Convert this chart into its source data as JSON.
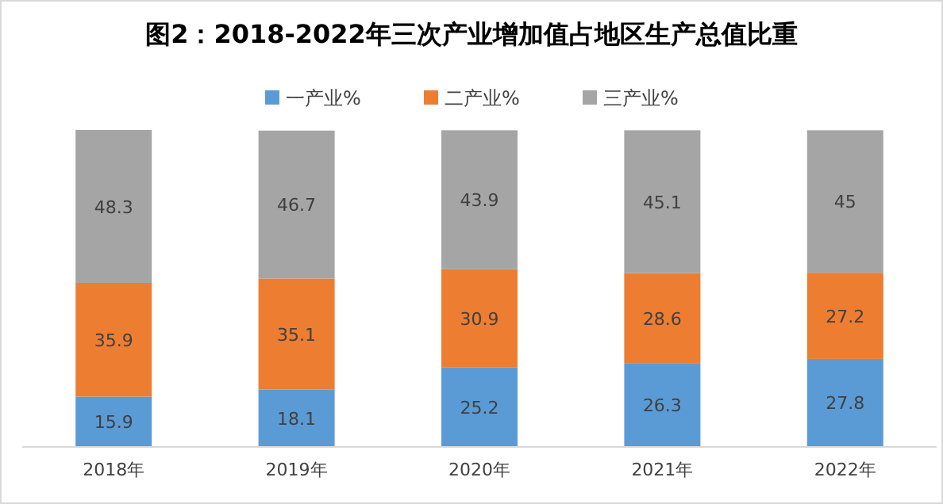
{
  "chart_data": {
    "type": "bar",
    "title": "图2：2018-2022年三次产业增加值占地区生产总值比重",
    "categories": [
      "2018年",
      "2019年",
      "2020年",
      "2021年",
      "2022年"
    ],
    "series": [
      {
        "name": "一产业%",
        "color": "#5b9bd5",
        "values": [
          15.9,
          18.1,
          25.2,
          26.3,
          27.8
        ]
      },
      {
        "name": "二产业%",
        "color": "#ed7d31",
        "values": [
          35.9,
          35.1,
          30.9,
          28.6,
          27.2
        ]
      },
      {
        "name": "三产业%",
        "color": "#a5a5a5",
        "values": [
          48.3,
          46.7,
          43.9,
          45.1,
          45
        ]
      }
    ],
    "stacked": true,
    "data_labels": true,
    "legend": "top"
  }
}
